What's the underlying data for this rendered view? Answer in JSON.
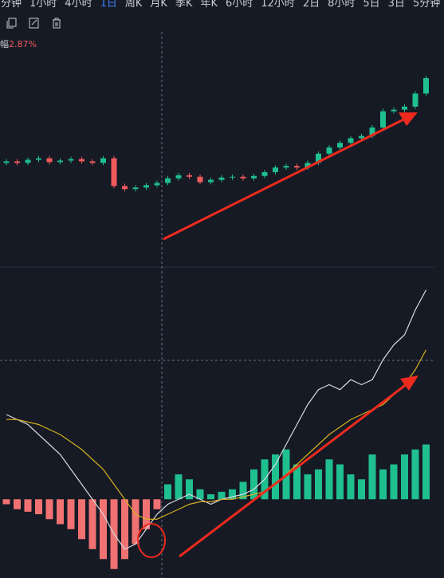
{
  "toolbar": {
    "tabs": [
      "分钟",
      "1小时",
      "4小时",
      "1日",
      "周K",
      "月K",
      "季K",
      "年K",
      "6小时",
      "12小时",
      "2日",
      "8小时",
      "5日",
      "3日",
      "5分钟"
    ],
    "active": 3
  },
  "change_prefix": "幅",
  "change_label": "2.87%",
  "chart_data": [
    {
      "type": "candlestick",
      "ylim": [
        90,
        120
      ],
      "up_color": "#1fbf8f",
      "down_color": "#f05a5a",
      "open": [
        103.0,
        103.2,
        103.0,
        103.4,
        103.6,
        103.1,
        103.3,
        103.5,
        103.2,
        103.0,
        103.6,
        100.0,
        99.6,
        99.8,
        100.1,
        100.4,
        101.0,
        101.4,
        101.2,
        100.5,
        100.8,
        101.1,
        101.2,
        101.0,
        101.3,
        101.8,
        102.4,
        102.6,
        102.4,
        103.0,
        104.2,
        105.0,
        105.6,
        106.2,
        106.5,
        107.6,
        109.7,
        109.9,
        110.3,
        112.0
      ],
      "high": [
        103.5,
        103.5,
        103.7,
        103.9,
        103.9,
        103.6,
        103.8,
        103.8,
        103.5,
        103.9,
        103.9,
        100.3,
        100.1,
        100.4,
        100.7,
        101.3,
        101.7,
        101.7,
        101.5,
        101.1,
        101.4,
        101.5,
        101.5,
        101.6,
        102.1,
        102.7,
        102.9,
        102.9,
        103.3,
        104.5,
        105.3,
        105.9,
        106.5,
        106.8,
        107.9,
        110.0,
        110.2,
        110.6,
        112.3,
        114.3
      ],
      "low": [
        102.7,
        102.7,
        102.7,
        103.1,
        102.8,
        102.8,
        103.0,
        102.9,
        102.7,
        102.7,
        99.7,
        99.3,
        99.3,
        99.5,
        99.8,
        100.1,
        100.7,
        100.9,
        100.2,
        100.2,
        100.5,
        100.8,
        100.7,
        100.7,
        101.0,
        101.5,
        102.1,
        102.1,
        102.1,
        102.7,
        103.9,
        104.7,
        105.3,
        105.9,
        106.2,
        107.3,
        109.4,
        109.6,
        110.0,
        111.7
      ],
      "close": [
        103.2,
        103.0,
        103.4,
        103.6,
        103.1,
        103.3,
        103.5,
        103.2,
        103.0,
        103.6,
        100.0,
        99.6,
        99.8,
        100.1,
        100.4,
        101.0,
        101.4,
        101.2,
        100.5,
        100.8,
        101.1,
        101.2,
        101.0,
        101.3,
        101.8,
        102.4,
        102.6,
        102.4,
        103.0,
        104.2,
        105.0,
        105.6,
        106.2,
        106.5,
        107.6,
        109.7,
        109.9,
        110.3,
        112.0,
        114.0
      ]
    },
    {
      "type": "macd",
      "ylim": [
        -1.5,
        4.5
      ],
      "up_color": "#1fbf8f",
      "down_color": "#f07272",
      "histogram": [
        -0.1,
        -0.2,
        -0.25,
        -0.3,
        -0.4,
        -0.5,
        -0.6,
        -0.8,
        -1.0,
        -1.2,
        -1.4,
        -1.2,
        -0.9,
        -0.6,
        -0.2,
        0.3,
        0.5,
        0.4,
        0.2,
        0.1,
        0.15,
        0.2,
        0.35,
        0.6,
        0.8,
        0.9,
        1.0,
        0.7,
        0.5,
        0.6,
        0.8,
        0.7,
        0.5,
        0.4,
        0.9,
        0.6,
        0.7,
        0.9,
        1.0,
        1.1
      ],
      "series": [
        {
          "color": "#d9d9e0",
          "values": [
            1.7,
            1.6,
            1.5,
            1.3,
            1.1,
            0.9,
            0.6,
            0.3,
            0.0,
            -0.3,
            -0.7,
            -1.0,
            -0.9,
            -0.6,
            -0.3,
            -0.1,
            0.0,
            0.1,
            0.0,
            -0.1,
            0.0,
            0.05,
            0.1,
            0.2,
            0.4,
            0.7,
            1.1,
            1.5,
            1.9,
            2.2,
            2.3,
            2.2,
            2.4,
            2.3,
            2.4,
            2.8,
            3.1,
            3.3,
            3.8,
            4.2
          ]
        },
        {
          "color": "#d4b020",
          "values": [
            1.6,
            1.6,
            1.55,
            1.5,
            1.4,
            1.3,
            1.15,
            1.0,
            0.8,
            0.6,
            0.3,
            0.0,
            -0.3,
            -0.4,
            -0.4,
            -0.3,
            -0.2,
            -0.1,
            -0.05,
            -0.05,
            0.0,
            0.0,
            0.05,
            0.1,
            0.15,
            0.3,
            0.5,
            0.7,
            0.9,
            1.1,
            1.3,
            1.45,
            1.6,
            1.7,
            1.8,
            1.9,
            2.1,
            2.3,
            2.6,
            3.0
          ]
        }
      ]
    }
  ]
}
